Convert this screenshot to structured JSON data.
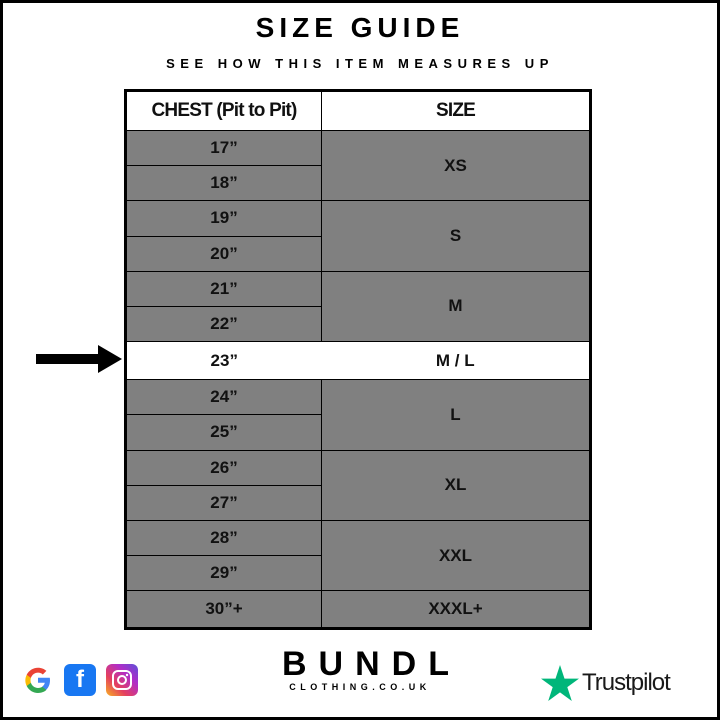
{
  "title": "SIZE GUIDE",
  "subtitle": "SEE HOW THIS ITEM MEASURES UP",
  "table": {
    "headers": [
      "CHEST (Pit to Pit)",
      "SIZE"
    ],
    "rows": [
      {
        "chest": "17”",
        "size": "XS"
      },
      {
        "chest": "18”",
        "size": "XS"
      },
      {
        "chest": "19”",
        "size": "S"
      },
      {
        "chest": "20”",
        "size": "S"
      },
      {
        "chest": "21”",
        "size": "M"
      },
      {
        "chest": "22”",
        "size": "M"
      },
      {
        "chest": "23”",
        "size": "M / L",
        "highlighted": true
      },
      {
        "chest": "24”",
        "size": "L"
      },
      {
        "chest": "25”",
        "size": "L"
      },
      {
        "chest": "26”",
        "size": "XL"
      },
      {
        "chest": "27”",
        "size": "XL"
      },
      {
        "chest": "28”",
        "size": "XXL"
      },
      {
        "chest": "29”",
        "size": "XXL"
      },
      {
        "chest": "30”+",
        "size": "XXXL+"
      }
    ]
  },
  "footer": {
    "brand": "BUNDL",
    "brand_sub": "CLOTHING.CO.UK",
    "trustpilot": "Trustpilot",
    "social_icons": [
      "google-icon",
      "facebook-icon",
      "instagram-icon"
    ]
  },
  "colors": {
    "row_fill": "#808080",
    "highlight": "#ffffff",
    "trustpilot_green": "#00b67a",
    "facebook": "#1877f2"
  }
}
